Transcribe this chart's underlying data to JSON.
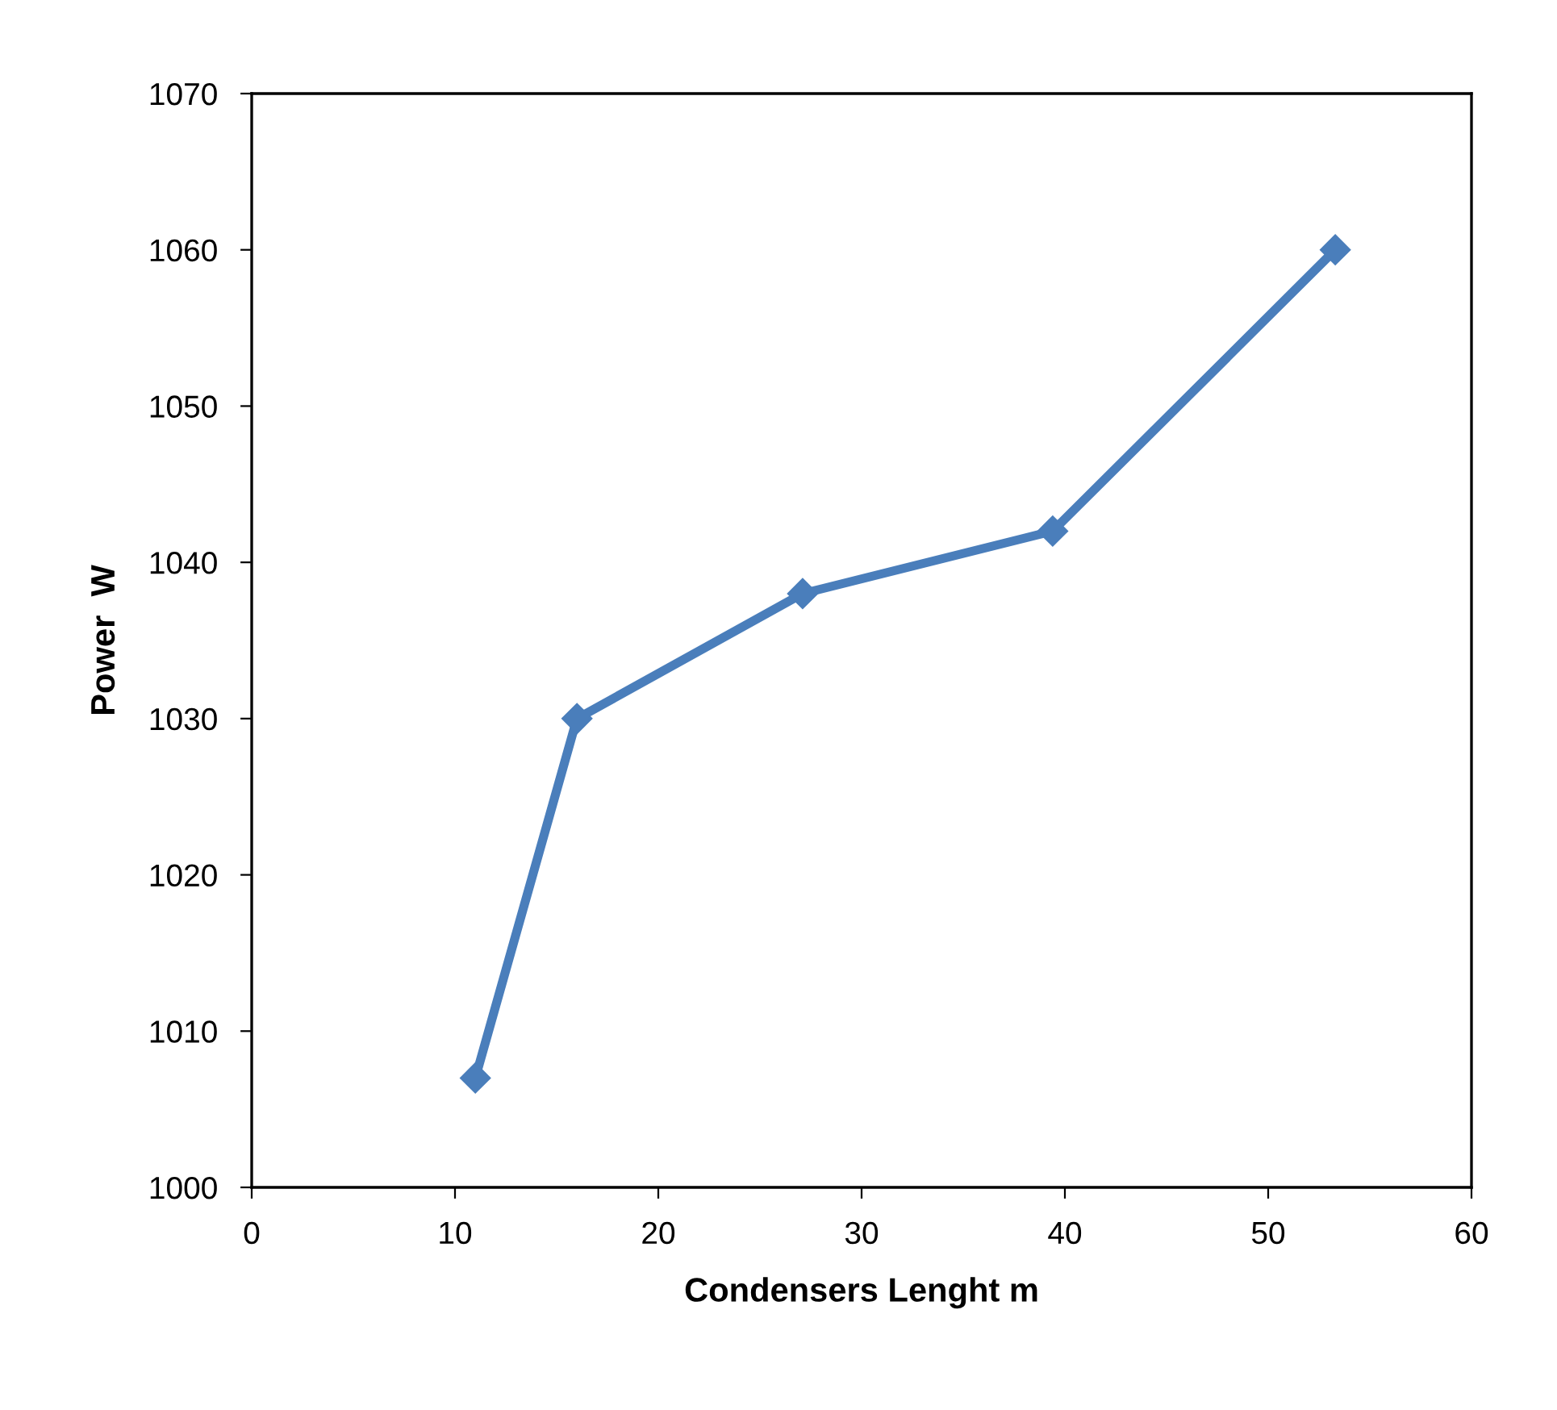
{
  "chart_data": {
    "type": "line",
    "xlabel": "Condensers Lenght m",
    "ylabel": "Power  W",
    "x": [
      11,
      16,
      27.1,
      39.4,
      53.3
    ],
    "series": [
      {
        "color": "#4a7ebb",
        "values": [
          1007,
          1030,
          1038,
          1042,
          1060
        ]
      }
    ],
    "xlim": [
      0,
      60
    ],
    "xticks": [
      0,
      10,
      20,
      30,
      40,
      50,
      60
    ],
    "ylim": [
      1000,
      1070
    ],
    "yticks": [
      1000,
      1010,
      1020,
      1030,
      1040,
      1050,
      1060,
      1070
    ],
    "grid": false,
    "legend": false,
    "marker": "diamond",
    "line_style": "solid"
  }
}
